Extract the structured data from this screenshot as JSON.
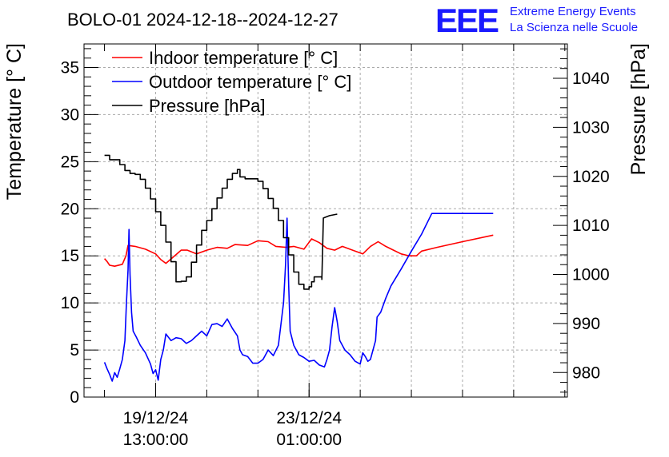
{
  "chart_data": {
    "type": "line",
    "title": "BOLO-01 2024-12-18--2024-12-27",
    "ylabel": "Temperature [° C]",
    "y2label": "Pressure [hPa]",
    "ylim": [
      0,
      37.5
    ],
    "y2lim": [
      975,
      1047
    ],
    "y_ticks": [
      "0",
      "5",
      "10",
      "15",
      "20",
      "25",
      "30",
      "35"
    ],
    "y2_ticks": [
      "980",
      "990",
      "1000",
      "1010",
      "1020",
      "1030",
      "1040"
    ],
    "x_ticks": [
      {
        "date": "19/12/24",
        "time": "13:00:00"
      },
      {
        "date": "23/12/24",
        "time": "01:00:00"
      }
    ],
    "grid": true,
    "legend_position": "top-left",
    "logo": {
      "mark": "EEE",
      "line1": "Extreme Energy Events",
      "line2": "La Scienza nelle Scuole"
    },
    "series": [
      {
        "name": "Indoor temperature [° C]",
        "color": "#ff0000",
        "axis": "left",
        "points": [
          [
            0.0,
            14.7
          ],
          [
            0.05,
            14.4
          ],
          [
            0.1,
            14.0
          ],
          [
            0.2,
            13.9
          ],
          [
            0.35,
            14.1
          ],
          [
            0.42,
            15.0
          ],
          [
            0.46,
            16.1
          ],
          [
            0.6,
            16.0
          ],
          [
            0.8,
            15.7
          ],
          [
            1.0,
            15.2
          ],
          [
            1.1,
            14.6
          ],
          [
            1.2,
            14.2
          ],
          [
            1.35,
            14.9
          ],
          [
            1.5,
            15.6
          ],
          [
            1.62,
            15.6
          ],
          [
            1.8,
            15.2
          ],
          [
            2.0,
            15.6
          ],
          [
            2.2,
            15.9
          ],
          [
            2.4,
            15.8
          ],
          [
            2.55,
            16.2
          ],
          [
            2.8,
            16.1
          ],
          [
            3.0,
            16.6
          ],
          [
            3.2,
            16.5
          ],
          [
            3.35,
            16.0
          ],
          [
            3.55,
            15.9
          ],
          [
            3.7,
            16.0
          ],
          [
            3.9,
            15.7
          ],
          [
            4.05,
            16.8
          ],
          [
            4.2,
            16.4
          ],
          [
            4.35,
            15.8
          ],
          [
            4.5,
            15.6
          ],
          [
            4.65,
            16.0
          ],
          [
            4.85,
            15.6
          ],
          [
            5.05,
            15.2
          ],
          [
            5.2,
            16.0
          ],
          [
            5.35,
            16.5
          ],
          [
            5.5,
            16.0
          ],
          [
            5.65,
            15.6
          ],
          [
            5.8,
            15.2
          ],
          [
            5.95,
            15.0
          ],
          [
            6.1,
            15.0
          ],
          [
            6.2,
            15.5
          ],
          [
            6.5,
            15.9
          ],
          [
            7.0,
            16.5
          ],
          [
            7.6,
            17.2
          ]
        ]
      },
      {
        "name": "Outdoor temperature [° C]",
        "color": "#0000ff",
        "axis": "left",
        "points": [
          [
            0.0,
            3.7
          ],
          [
            0.05,
            3.0
          ],
          [
            0.1,
            2.4
          ],
          [
            0.15,
            1.7
          ],
          [
            0.2,
            2.6
          ],
          [
            0.25,
            2.1
          ],
          [
            0.3,
            3.0
          ],
          [
            0.35,
            4.0
          ],
          [
            0.4,
            6.0
          ],
          [
            0.43,
            10.0
          ],
          [
            0.46,
            13.5
          ],
          [
            0.48,
            17.8
          ],
          [
            0.5,
            13.0
          ],
          [
            0.53,
            9.0
          ],
          [
            0.56,
            7.0
          ],
          [
            0.62,
            6.4
          ],
          [
            0.7,
            5.5
          ],
          [
            0.8,
            4.7
          ],
          [
            0.9,
            3.5
          ],
          [
            0.95,
            2.5
          ],
          [
            1.0,
            2.9
          ],
          [
            1.05,
            1.8
          ],
          [
            1.1,
            4.0
          ],
          [
            1.15,
            5.0
          ],
          [
            1.2,
            6.7
          ],
          [
            1.3,
            6.0
          ],
          [
            1.4,
            6.3
          ],
          [
            1.5,
            6.2
          ],
          [
            1.6,
            5.7
          ],
          [
            1.7,
            6.0
          ],
          [
            1.8,
            6.5
          ],
          [
            1.9,
            7.0
          ],
          [
            2.0,
            6.5
          ],
          [
            2.1,
            7.7
          ],
          [
            2.2,
            7.8
          ],
          [
            2.3,
            7.5
          ],
          [
            2.4,
            8.3
          ],
          [
            2.5,
            7.3
          ],
          [
            2.6,
            6.5
          ],
          [
            2.65,
            5.0
          ],
          [
            2.7,
            4.5
          ],
          [
            2.8,
            4.3
          ],
          [
            2.9,
            3.6
          ],
          [
            3.0,
            3.6
          ],
          [
            3.1,
            4.0
          ],
          [
            3.2,
            5.0
          ],
          [
            3.3,
            4.4
          ],
          [
            3.4,
            5.5
          ],
          [
            3.5,
            10.0
          ],
          [
            3.54,
            14.0
          ],
          [
            3.57,
            19.0
          ],
          [
            3.6,
            12.0
          ],
          [
            3.63,
            7.0
          ],
          [
            3.7,
            5.5
          ],
          [
            3.8,
            4.5
          ],
          [
            3.9,
            4.2
          ],
          [
            4.0,
            3.8
          ],
          [
            4.1,
            3.9
          ],
          [
            4.2,
            3.4
          ],
          [
            4.3,
            3.2
          ],
          [
            4.35,
            4.0
          ],
          [
            4.4,
            5.0
          ],
          [
            4.45,
            7.5
          ],
          [
            4.5,
            9.5
          ],
          [
            4.55,
            8.0
          ],
          [
            4.6,
            6.0
          ],
          [
            4.7,
            5.0
          ],
          [
            4.8,
            4.5
          ],
          [
            4.9,
            3.8
          ],
          [
            5.0,
            3.5
          ],
          [
            5.05,
            4.7
          ],
          [
            5.1,
            4.3
          ],
          [
            5.15,
            3.8
          ],
          [
            5.2,
            4.0
          ],
          [
            5.25,
            5.0
          ],
          [
            5.3,
            6.0
          ],
          [
            5.33,
            8.5
          ],
          [
            5.4,
            9.0
          ],
          [
            5.5,
            10.5
          ],
          [
            5.6,
            11.8
          ],
          [
            5.8,
            13.6
          ],
          [
            6.0,
            15.5
          ],
          [
            6.2,
            17.3
          ],
          [
            6.4,
            19.5
          ],
          [
            7.6,
            19.5
          ]
        ]
      },
      {
        "name": "Pressure [hPa]",
        "color": "#000000",
        "axis": "right",
        "points": [
          [
            0.0,
            1024.3
          ],
          [
            0.1,
            1023.4
          ],
          [
            0.3,
            1022.4
          ],
          [
            0.4,
            1021.2
          ],
          [
            0.5,
            1020.6
          ],
          [
            0.6,
            1020.4
          ],
          [
            0.7,
            1019.4
          ],
          [
            0.8,
            1017.6
          ],
          [
            0.9,
            1015.4
          ],
          [
            1.0,
            1012.8
          ],
          [
            1.1,
            1010.0
          ],
          [
            1.2,
            1006.6
          ],
          [
            1.3,
            1002.6
          ],
          [
            1.4,
            998.5
          ],
          [
            1.5,
            998.6
          ],
          [
            1.6,
            999.5
          ],
          [
            1.7,
            1002.5
          ],
          [
            1.8,
            1006.0
          ],
          [
            1.9,
            1009.0
          ],
          [
            2.0,
            1011.0
          ],
          [
            2.1,
            1013.4
          ],
          [
            2.2,
            1015.6
          ],
          [
            2.3,
            1017.6
          ],
          [
            2.4,
            1019.4
          ],
          [
            2.5,
            1020.6
          ],
          [
            2.6,
            1021.4
          ],
          [
            2.65,
            1019.9
          ],
          [
            2.75,
            1019.5
          ],
          [
            2.9,
            1019.5
          ],
          [
            3.0,
            1019.0
          ],
          [
            3.1,
            1017.5
          ],
          [
            3.2,
            1015.5
          ],
          [
            3.3,
            1013.5
          ],
          [
            3.4,
            1011.0
          ],
          [
            3.5,
            1007.5
          ],
          [
            3.6,
            1004.0
          ],
          [
            3.7,
            1000.5
          ],
          [
            3.8,
            998.0
          ],
          [
            3.9,
            997.0
          ],
          [
            4.0,
            997.5
          ],
          [
            4.05,
            998.5
          ],
          [
            4.1,
            999.5
          ],
          [
            4.2,
            999.5
          ],
          [
            4.25,
            999.0
          ],
          [
            4.28,
            1011.5
          ],
          [
            4.4,
            1012.0
          ],
          [
            4.55,
            1012.3
          ]
        ]
      }
    ]
  }
}
